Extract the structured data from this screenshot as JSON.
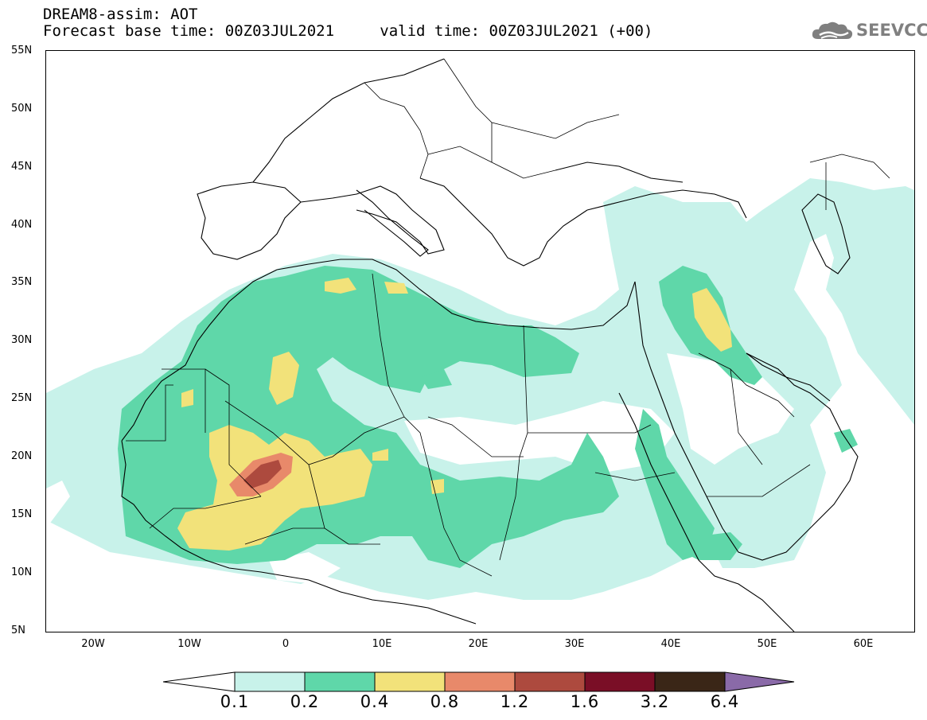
{
  "header": {
    "line1": "DREAM8-assim: AOT",
    "line2_base": "Forecast base time: 00Z03JUL2021",
    "line2_valid": "valid time: 00Z03JUL2021 (+00)"
  },
  "logo": {
    "text": "SEEVCCC",
    "icon": "cloud-icon"
  },
  "map": {
    "lat_labels": [
      "55N",
      "50N",
      "45N",
      "40N",
      "35N",
      "30N",
      "25N",
      "20N",
      "15N",
      "10N",
      "5N"
    ],
    "lon_labels": [
      "20W",
      "10W",
      "0",
      "10E",
      "20E",
      "30E",
      "40E",
      "50E",
      "60E"
    ],
    "lat_range": [
      5,
      55
    ],
    "lon_range": [
      -25,
      65
    ]
  },
  "colorbar": {
    "levels": [
      "0.1",
      "0.2",
      "0.4",
      "0.8",
      "1.2",
      "1.6",
      "3.2",
      "6.4"
    ],
    "colors": [
      "#ffffff",
      "#c8f2ea",
      "#5ede b0",
      "#f2e27a",
      "#e8896a",
      "#ad4a3e",
      "#7a0e26",
      "#3a2617",
      "#7a5aa0"
    ]
  },
  "colors": {
    "aot_0_1_0_2": "#c8f2ea",
    "aot_0_2_0_4": "#5fd7a9",
    "aot_0_4_0_8": "#f2e27a",
    "aot_0_8_1_2": "#e8896a",
    "aot_1_2_1_6": "#ad4a3e",
    "aot_1_6_3_2": "#7a0e26",
    "aot_3_2_6_4": "#3a2617",
    "aot_above_6_4": "#8a6aa8"
  }
}
